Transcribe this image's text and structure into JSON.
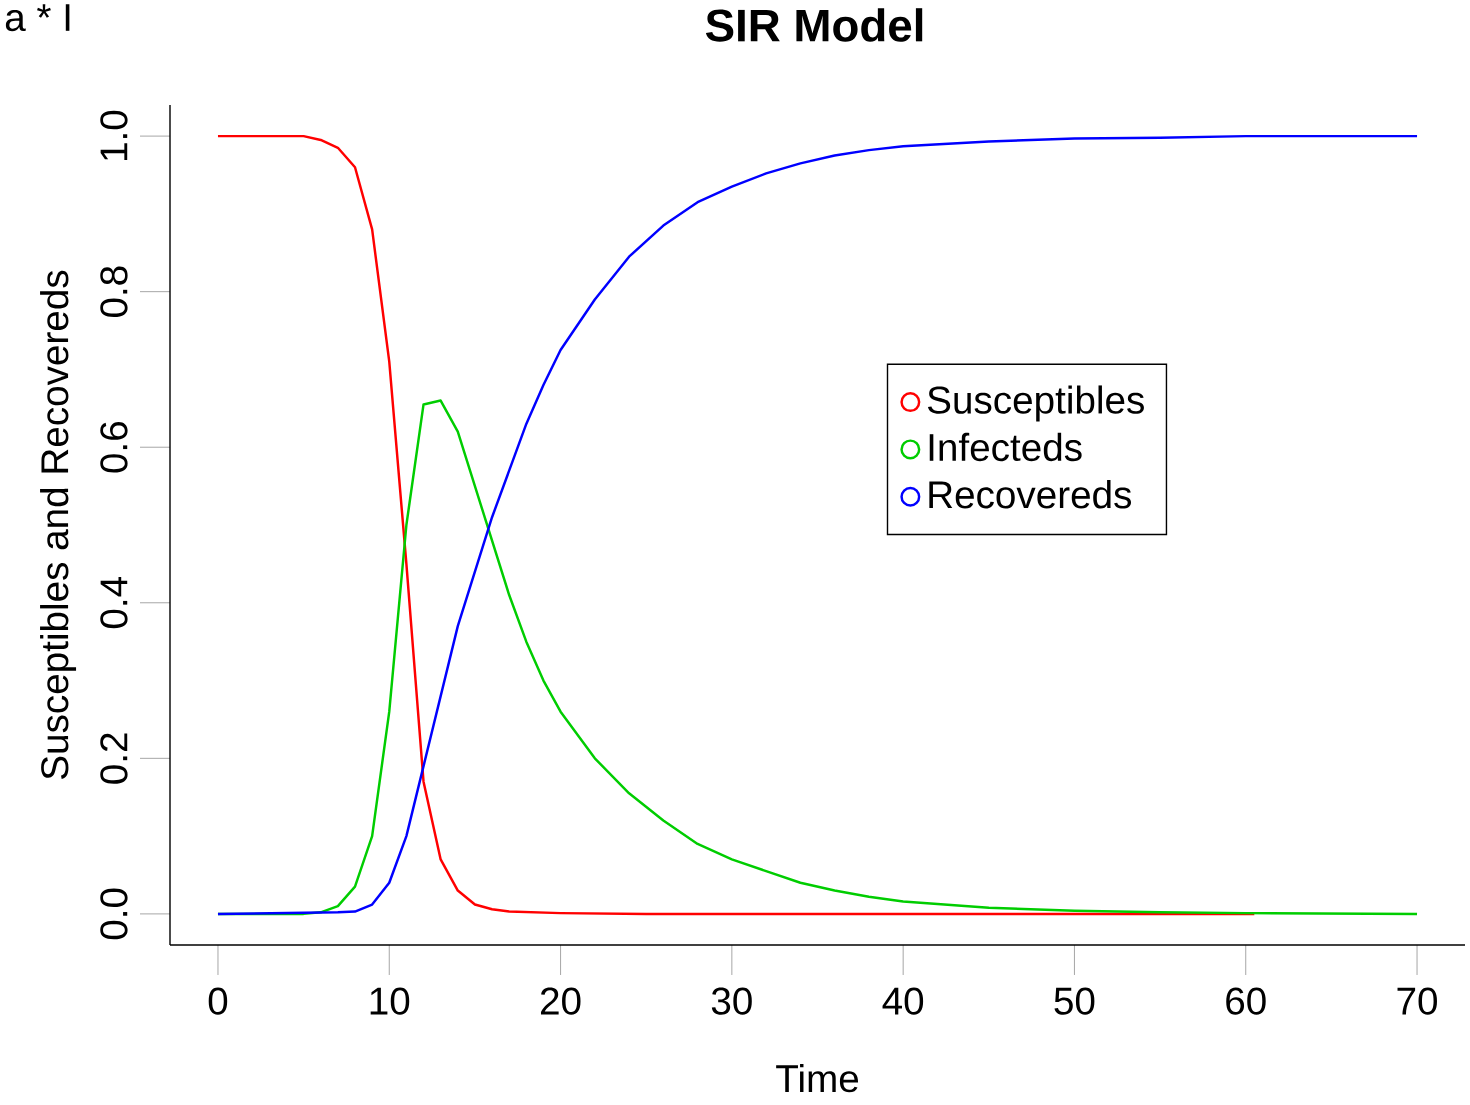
{
  "chart_data": {
    "type": "line",
    "title": "SIR Model",
    "xlabel": "Time",
    "ylabel": "Susceptibles and Recovereds",
    "annotations": [
      "a * I"
    ],
    "xlim": [
      -2.8,
      72.8
    ],
    "ylim": [
      -0.04,
      1.04
    ],
    "xticks": [
      0,
      10,
      20,
      30,
      40,
      50,
      60,
      70
    ],
    "yticks": [
      {
        "value": 0,
        "label": "0.0"
      },
      {
        "value": 0.2,
        "label": "0.2"
      },
      {
        "value": 0.4,
        "label": "0.4"
      },
      {
        "value": 0.6,
        "label": "0.6"
      },
      {
        "value": 0.8,
        "label": "0.8"
      },
      {
        "value": 1,
        "label": "1.0"
      }
    ],
    "grid": false,
    "legend": "right",
    "marker": "none",
    "line_style": "solid",
    "series": [
      {
        "name": "Susceptibles",
        "color": "#ff0000",
        "x": [
          0,
          5,
          6,
          7,
          8,
          9,
          10,
          11,
          12,
          13,
          14,
          15,
          16,
          17,
          20,
          25,
          60.5
        ],
        "values": [
          1,
          1,
          0.995,
          0.985,
          0.96,
          0.88,
          0.71,
          0.45,
          0.17,
          0.07,
          0.03,
          0.012,
          0.006,
          0.003,
          0.001,
          0,
          0
        ]
      },
      {
        "name": "Infecteds",
        "color": "#00cd00",
        "x": [
          0,
          5,
          6,
          7,
          8,
          9,
          10,
          11,
          12,
          13,
          14,
          15,
          16,
          17,
          18,
          19,
          20,
          22,
          24,
          26,
          28,
          30,
          32,
          34,
          36,
          38,
          40,
          45,
          50,
          55,
          60,
          70
        ],
        "values": [
          0,
          0,
          0.002,
          0.01,
          0.035,
          0.1,
          0.26,
          0.5,
          0.655,
          0.66,
          0.62,
          0.55,
          0.48,
          0.41,
          0.35,
          0.3,
          0.26,
          0.2,
          0.155,
          0.12,
          0.09,
          0.07,
          0.055,
          0.04,
          0.03,
          0.022,
          0.016,
          0.008,
          0.004,
          0.002,
          0.001,
          0
        ]
      },
      {
        "name": "Recovereds",
        "color": "#0000ff",
        "x": [
          0,
          7,
          8,
          9,
          10,
          11,
          12,
          13,
          14,
          15,
          16,
          17,
          18,
          19,
          20,
          22,
          24,
          26,
          28,
          30,
          32,
          34,
          36,
          38,
          40,
          45,
          50,
          55,
          60,
          70
        ],
        "values": [
          0,
          0.002,
          0.003,
          0.012,
          0.04,
          0.1,
          0.19,
          0.28,
          0.37,
          0.44,
          0.51,
          0.57,
          0.63,
          0.68,
          0.725,
          0.79,
          0.845,
          0.885,
          0.915,
          0.935,
          0.952,
          0.965,
          0.975,
          0.982,
          0.987,
          0.993,
          0.997,
          0.998,
          1,
          1
        ]
      }
    ]
  }
}
